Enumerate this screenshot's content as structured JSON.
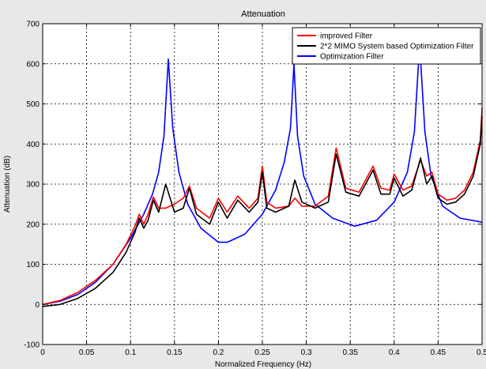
{
  "chart_data": {
    "type": "line",
    "title": "Attenuation",
    "xlabel": "Normalized Frequency (Hz)",
    "ylabel": "Attenuation (dB)",
    "xlim": [
      0,
      0.5
    ],
    "ylim": [
      -100,
      700
    ],
    "xticks": [
      0,
      0.05,
      0.1,
      0.15,
      0.2,
      0.25,
      0.3,
      0.35,
      0.4,
      0.45,
      0.5
    ],
    "xtick_labels": [
      "0",
      "0.05",
      "0.1",
      "0.15",
      "0.2",
      "0.25",
      "0.3",
      "0.35",
      "0.4",
      "0.45",
      "0.5"
    ],
    "yticks": [
      -100,
      0,
      100,
      200,
      300,
      400,
      500,
      600,
      700
    ],
    "ytick_labels": [
      "-100",
      "0",
      "100",
      "200",
      "300",
      "400",
      "500",
      "600",
      "700"
    ],
    "grid": true,
    "legend_position": "top-right",
    "series": [
      {
        "name": "improved Filter",
        "color": "#ff0000",
        "x": [
          0,
          0.02,
          0.04,
          0.06,
          0.08,
          0.095,
          0.105,
          0.11,
          0.115,
          0.12,
          0.126,
          0.132,
          0.14,
          0.15,
          0.16,
          0.167,
          0.175,
          0.19,
          0.2,
          0.21,
          0.222,
          0.235,
          0.245,
          0.25,
          0.255,
          0.265,
          0.28,
          0.287,
          0.295,
          0.31,
          0.325,
          0.334,
          0.345,
          0.36,
          0.376,
          0.385,
          0.395,
          0.4,
          0.41,
          0.42,
          0.43,
          0.437,
          0.443,
          0.45,
          0.46,
          0.47,
          0.48,
          0.49,
          0.498,
          0.5
        ],
        "y": [
          0,
          10,
          30,
          60,
          100,
          150,
          195,
          225,
          200,
          225,
          268,
          240,
          240,
          250,
          265,
          295,
          240,
          215,
          265,
          230,
          270,
          240,
          265,
          345,
          255,
          240,
          245,
          265,
          245,
          245,
          270,
          390,
          290,
          280,
          345,
          290,
          285,
          325,
          285,
          295,
          360,
          320,
          330,
          275,
          260,
          265,
          285,
          330,
          410,
          490
        ]
      },
      {
        "name": "2*2 MIMO System based Optimization Filter",
        "color": "#000000",
        "x": [
          0,
          0.02,
          0.04,
          0.06,
          0.08,
          0.095,
          0.105,
          0.11,
          0.115,
          0.12,
          0.126,
          0.132,
          0.14,
          0.15,
          0.16,
          0.167,
          0.175,
          0.19,
          0.2,
          0.21,
          0.222,
          0.235,
          0.245,
          0.25,
          0.255,
          0.265,
          0.28,
          0.287,
          0.295,
          0.31,
          0.325,
          0.334,
          0.345,
          0.36,
          0.376,
          0.385,
          0.395,
          0.4,
          0.41,
          0.42,
          0.43,
          0.437,
          0.443,
          0.45,
          0.46,
          0.47,
          0.48,
          0.49,
          0.498,
          0.5
        ],
        "y": [
          -5,
          0,
          15,
          40,
          80,
          130,
          180,
          215,
          190,
          210,
          260,
          230,
          300,
          230,
          240,
          290,
          225,
          200,
          255,
          215,
          260,
          230,
          255,
          330,
          240,
          230,
          245,
          310,
          255,
          240,
          255,
          375,
          280,
          270,
          335,
          275,
          275,
          315,
          270,
          285,
          365,
          300,
          320,
          265,
          250,
          255,
          275,
          320,
          400,
          470
        ]
      },
      {
        "name": "Optimization Filter",
        "color": "#0000ff",
        "x": [
          0,
          0.02,
          0.04,
          0.06,
          0.08,
          0.1,
          0.115,
          0.125,
          0.132,
          0.138,
          0.143,
          0.148,
          0.155,
          0.165,
          0.18,
          0.2,
          0.21,
          0.23,
          0.25,
          0.265,
          0.275,
          0.282,
          0.286,
          0.29,
          0.297,
          0.31,
          0.33,
          0.355,
          0.38,
          0.4,
          0.415,
          0.423,
          0.429,
          0.435,
          0.442,
          0.455,
          0.475,
          0.5
        ],
        "y": [
          0,
          8,
          25,
          55,
          100,
          165,
          225,
          275,
          330,
          420,
          612,
          440,
          330,
          250,
          190,
          155,
          155,
          175,
          225,
          285,
          355,
          440,
          600,
          420,
          320,
          250,
          215,
          195,
          210,
          255,
          330,
          430,
          650,
          430,
          320,
          245,
          215,
          205
        ]
      }
    ]
  }
}
